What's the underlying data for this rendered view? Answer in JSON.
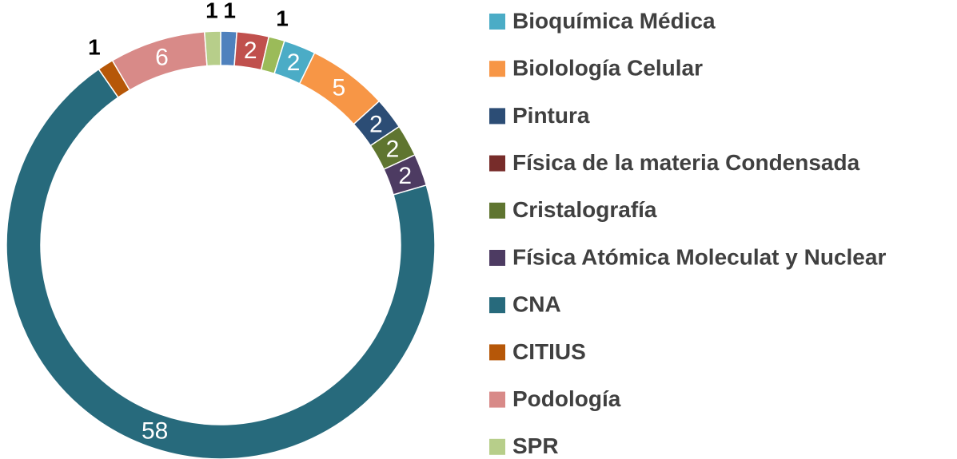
{
  "chart_data": {
    "type": "donut",
    "categories": [
      null,
      null,
      null,
      null,
      "Bioquímica Médica",
      "Biolología Celular",
      "Pintura",
      "Física de la materia Condensada",
      "Cristalografía",
      "Física Atómica Moleculat y Nuclear",
      "CNA",
      "CITIUS",
      "Podología",
      "SPR"
    ],
    "values": [
      1,
      2,
      1,
      0,
      2,
      5,
      2,
      0,
      2,
      2,
      58,
      1,
      6,
      1
    ],
    "colors": [
      "#4F81BD",
      "#C0504D",
      "#9BBB59",
      "#8064A2",
      "#4BACC6",
      "#F79646",
      "#2C4D75",
      "#772C2A",
      "#5F7530",
      "#4D3B62",
      "#276A7C",
      "#B65708",
      "#D88A88",
      "#B7CE8A"
    ]
  }
}
